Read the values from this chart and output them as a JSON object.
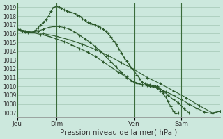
{
  "xlabel": "Pression niveau de la mer( hPa )",
  "bg_color": "#cce8dd",
  "grid_color": "#aaccbb",
  "line_color": "#2d5a2d",
  "vline_color": "#3a6b3a",
  "ylim": [
    1006.5,
    1019.5
  ],
  "yticks": [
    1007,
    1008,
    1009,
    1010,
    1011,
    1012,
    1013,
    1014,
    1015,
    1016,
    1017,
    1018,
    1019
  ],
  "xtick_labels": [
    "Jeu",
    "Dim",
    "Ven",
    "Sam"
  ],
  "xtick_pos": [
    0,
    30,
    90,
    126
  ],
  "total_steps": 156,
  "line1_x": [
    0,
    2,
    4,
    6,
    8,
    10,
    12,
    14,
    16,
    18,
    20,
    22,
    24,
    26,
    28,
    30,
    32,
    34,
    36,
    38,
    40,
    42,
    44,
    46,
    48,
    50,
    52,
    54,
    56,
    58,
    60,
    62,
    64,
    66,
    68,
    70,
    72,
    74,
    76,
    78,
    80,
    82,
    84,
    86,
    88,
    90,
    92,
    94,
    96,
    98,
    100,
    102,
    104,
    106,
    108,
    110,
    112,
    114,
    116,
    118,
    120,
    122,
    124
  ],
  "line1_y": [
    1016.5,
    1016.4,
    1016.3,
    1016.2,
    1016.2,
    1016.1,
    1016.2,
    1016.4,
    1016.7,
    1017.0,
    1017.3,
    1017.6,
    1018.0,
    1018.6,
    1019.0,
    1019.1,
    1019.0,
    1018.9,
    1018.7,
    1018.6,
    1018.5,
    1018.4,
    1018.3,
    1018.1,
    1018.0,
    1017.7,
    1017.5,
    1017.3,
    1017.2,
    1017.1,
    1017.0,
    1016.8,
    1016.7,
    1016.5,
    1016.3,
    1016.0,
    1015.6,
    1015.2,
    1014.8,
    1014.3,
    1013.8,
    1013.3,
    1012.9,
    1012.5,
    1012.1,
    1011.7,
    1011.3,
    1010.9,
    1010.5,
    1010.3,
    1010.2,
    1010.2,
    1010.1,
    1010.0,
    1009.8,
    1009.5,
    1009.2,
    1008.8,
    1008.3,
    1007.7,
    1007.2,
    1006.9,
    1007.0
  ],
  "line2_x": [
    0,
    4,
    8,
    12,
    16,
    20,
    24,
    28,
    32,
    36,
    40,
    44,
    48,
    52,
    56,
    60,
    64,
    68,
    72,
    76,
    80,
    84,
    88,
    92,
    96,
    100,
    104,
    108,
    112,
    116,
    120,
    124,
    128,
    132
  ],
  "line2_y": [
    1016.5,
    1016.3,
    1016.1,
    1016.2,
    1016.3,
    1016.5,
    1016.7,
    1016.8,
    1016.8,
    1016.7,
    1016.5,
    1016.2,
    1015.8,
    1015.4,
    1015.0,
    1014.5,
    1014.0,
    1013.4,
    1012.8,
    1012.2,
    1011.6,
    1011.1,
    1010.6,
    1010.3,
    1010.2,
    1010.1,
    1010.0,
    1010.0,
    1009.5,
    1009.0,
    1008.5,
    1008.1,
    1007.5,
    1007.0
  ],
  "line3_x": [
    0,
    6,
    12,
    18,
    24,
    30,
    36,
    42,
    48,
    54,
    60,
    66,
    72,
    78,
    84,
    90,
    96,
    102,
    108,
    114,
    120,
    126,
    132,
    138,
    144,
    150,
    156
  ],
  "line3_y": [
    1016.5,
    1016.3,
    1016.1,
    1015.9,
    1015.7,
    1015.4,
    1015.1,
    1014.7,
    1014.3,
    1013.9,
    1013.4,
    1012.8,
    1012.2,
    1011.6,
    1011.0,
    1010.5,
    1010.2,
    1010.0,
    1009.8,
    1009.4,
    1009.0,
    1008.5,
    1008.0,
    1007.5,
    1007.1,
    1006.9,
    1007.2
  ],
  "line4_x": [
    0,
    10,
    20,
    30,
    40,
    50,
    60,
    70,
    80,
    90,
    100,
    110,
    120,
    130,
    140,
    150,
    156
  ],
  "line4_y": [
    1016.5,
    1016.2,
    1016.0,
    1015.7,
    1015.3,
    1014.8,
    1014.2,
    1013.5,
    1012.7,
    1011.9,
    1011.0,
    1010.3,
    1009.5,
    1008.7,
    1007.8,
    1007.0,
    1007.2
  ]
}
